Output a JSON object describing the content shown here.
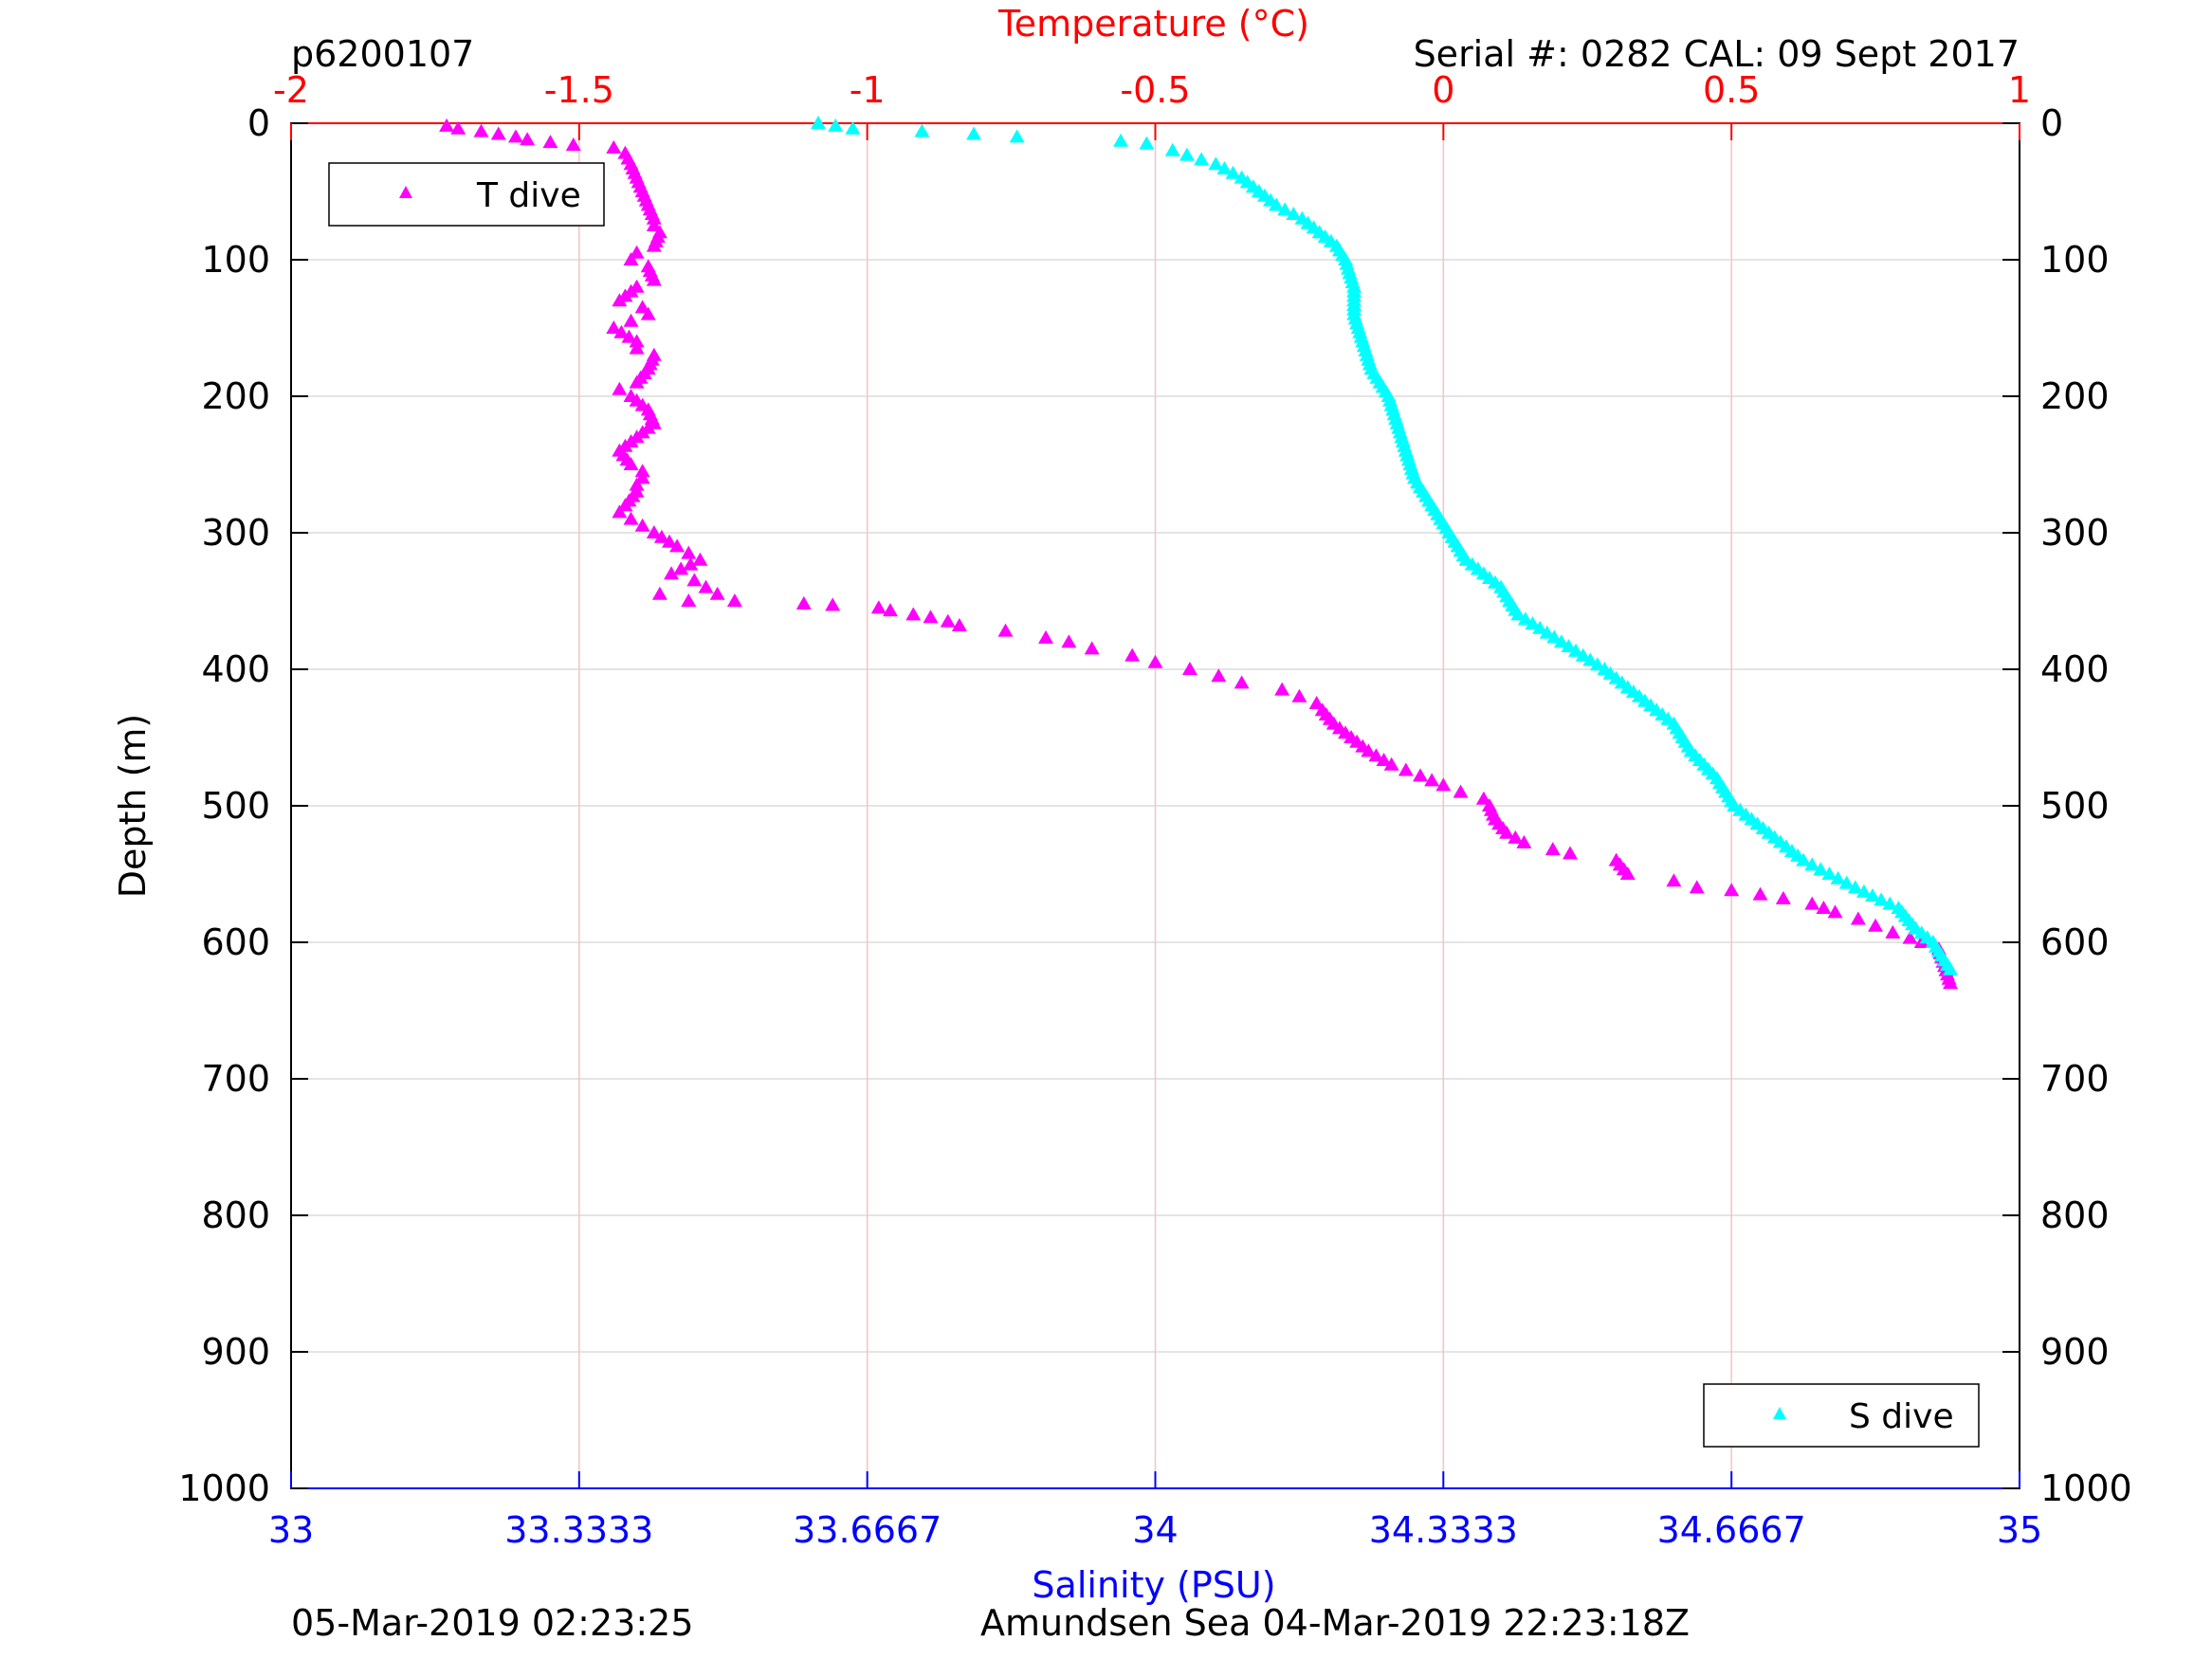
{
  "header": {
    "profile_id": "p6200107",
    "serial": "Serial #: 0282  CAL: 09 Sept 2017"
  },
  "footer": {
    "left": "05-Mar-2019 02:23:25",
    "right": "Amundsen Sea 04-Mar-2019 22:23:18Z"
  },
  "colors": {
    "temperature_axis": "#ff0000",
    "salinity_axis": "#0000ff",
    "t_series": "#ff00ff",
    "s_series": "#00ffff",
    "vertical_grid": "#f2c4c4",
    "horizontal_grid": "#dcdcdc"
  },
  "chart_data": {
    "type": "scatter",
    "marker": "triangle",
    "ylabel": "Depth (m)",
    "ylim": [
      0,
      1000
    ],
    "y_reversed": true,
    "y_ticks": [
      "0",
      "100",
      "200",
      "300",
      "400",
      "500",
      "600",
      "700",
      "800",
      "900",
      "1000"
    ],
    "y_tick_values": [
      0,
      100,
      200,
      300,
      400,
      500,
      600,
      700,
      800,
      900,
      1000
    ],
    "top_axis": {
      "label": "Temperature (°C)",
      "lim": [
        -2,
        1
      ],
      "ticks": [
        "-2",
        "-1.5",
        "-1",
        "-0.5",
        "0",
        "0.5",
        "1"
      ],
      "tick_values": [
        -2,
        -1.5,
        -1,
        -0.5,
        0,
        0.5,
        1
      ]
    },
    "bottom_axis": {
      "label": "Salinity (PSU)",
      "lim": [
        33,
        35
      ],
      "ticks": [
        "33",
        "33.3333",
        "33.6667",
        "34",
        "34.3333",
        "34.6667",
        "35"
      ],
      "tick_values": [
        33,
        33.3333,
        33.6667,
        34,
        34.3333,
        34.6667,
        35
      ]
    },
    "grid": true,
    "legend_t": {
      "label": "T dive",
      "placement": "top-left"
    },
    "legend_s": {
      "label": "S dive",
      "placement": "bottom-right"
    },
    "series": [
      {
        "name": "T dive",
        "axis": "temperature",
        "x": [
          -1.73,
          -1.71,
          -1.67,
          -1.64,
          -1.61,
          -1.59,
          -1.55,
          -1.51,
          -1.44,
          -1.42,
          -1.41,
          -1.4,
          -1.39,
          -1.38,
          -1.37,
          -1.37,
          -1.36,
          -1.37,
          -1.4,
          -1.41,
          -1.38,
          -1.37,
          -1.4,
          -1.43,
          -1.39,
          -1.38,
          -1.41,
          -1.44,
          -1.4,
          -1.4,
          -1.37,
          -1.38,
          -1.4,
          -1.43,
          -1.41,
          -1.38,
          -1.37,
          -1.4,
          -1.43,
          -1.41,
          -1.39,
          -1.39,
          -1.4,
          -1.4,
          -1.42,
          -1.43,
          -1.41,
          -1.39,
          -1.37,
          -1.33,
          -1.31,
          -1.29,
          -1.34,
          -1.3,
          -1.28,
          -1.26,
          -1.36,
          -1.31,
          -1.23,
          -1.11,
          -1.06,
          -0.98,
          -0.96,
          -0.92,
          -0.89,
          -0.86,
          -0.84,
          -0.76,
          -0.69,
          -0.65,
          -0.61,
          -0.54,
          -0.5,
          -0.44,
          -0.39,
          -0.35,
          -0.28,
          -0.25,
          -0.22,
          -0.21,
          -0.19,
          -0.16,
          -0.13,
          -0.09,
          -0.04,
          0.0,
          0.03,
          0.07,
          0.08,
          0.09,
          0.11,
          0.14,
          0.19,
          0.22,
          0.3,
          0.32,
          0.4,
          0.44,
          0.5,
          0.55,
          0.59,
          0.64,
          0.68,
          0.72,
          0.75,
          0.78,
          0.81,
          0.83,
          0.86,
          0.88
        ],
        "y": [
          2,
          4,
          6,
          8,
          10,
          12,
          14,
          16,
          18,
          22,
          30,
          40,
          50,
          60,
          70,
          75,
          80,
          90,
          95,
          100,
          105,
          115,
          120,
          130,
          135,
          140,
          145,
          150,
          160,
          165,
          170,
          180,
          190,
          195,
          200,
          210,
          220,
          230,
          240,
          250,
          255,
          260,
          265,
          270,
          280,
          285,
          290,
          295,
          300,
          310,
          315,
          320,
          330,
          335,
          340,
          345,
          345,
          350,
          350,
          352,
          353,
          355,
          357,
          360,
          362,
          365,
          368,
          372,
          377,
          380,
          385,
          390,
          395,
          400,
          405,
          410,
          415,
          420,
          425,
          430,
          440,
          450,
          460,
          470,
          478,
          485,
          490,
          495,
          500,
          510,
          520,
          527,
          532,
          535,
          540,
          550,
          555,
          560,
          562,
          565,
          568,
          572,
          578,
          583,
          588,
          593,
          597,
          600,
          605,
          630
        ]
      },
      {
        "name": "S dive",
        "axis": "salinity",
        "x": [
          33.61,
          33.63,
          33.65,
          33.73,
          33.79,
          33.84,
          33.96,
          33.99,
          34.02,
          34.07,
          34.1,
          34.12,
          34.14,
          34.17,
          34.19,
          34.21,
          34.22,
          34.23,
          34.23,
          34.24,
          34.25,
          34.27,
          34.28,
          34.29,
          34.3,
          34.32,
          34.34,
          34.36,
          34.4,
          34.42,
          34.47,
          34.52,
          34.56,
          34.6,
          34.62,
          34.65,
          34.67,
          34.71,
          34.75,
          34.81,
          34.86,
          34.88,
          34.9,
          34.91,
          34.92
        ],
        "y": [
          0,
          2,
          4,
          6,
          8,
          10,
          13,
          15,
          20,
          30,
          40,
          50,
          60,
          70,
          80,
          90,
          100,
          120,
          140,
          160,
          180,
          200,
          220,
          240,
          260,
          280,
          300,
          320,
          340,
          360,
          380,
          400,
          420,
          440,
          460,
          480,
          500,
          520,
          540,
          560,
          575,
          590,
          600,
          610,
          620
        ]
      }
    ]
  }
}
